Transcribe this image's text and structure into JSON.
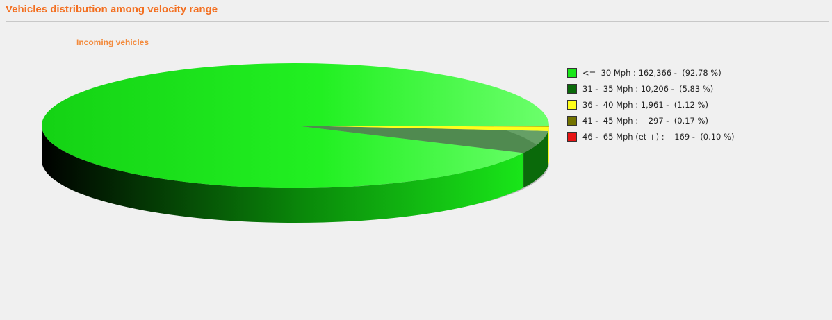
{
  "header": {
    "title": "Vehicles distribution among velocity range"
  },
  "chart_data": {
    "type": "pie",
    "title": "Incoming vehicles",
    "unit": "vehicles",
    "legend_position": "right",
    "slices": [
      {
        "label": "<=  30 Mph",
        "legend_text": "<=  30 Mph : 162,366 -  (92.78 %)",
        "value": 162366,
        "percent": 92.78,
        "color": "#19e619"
      },
      {
        "label": "31 -  35 Mph",
        "legend_text": "31 -  35 Mph : 10,206 -  (5.83 %)",
        "value": 10206,
        "percent": 5.83,
        "color": "#0a6a0a"
      },
      {
        "label": "36 -  40 Mph",
        "legend_text": "36 -  40 Mph : 1,961 -  (1.12 %)",
        "value": 1961,
        "percent": 1.12,
        "color": "#ffff1a"
      },
      {
        "label": "41 -  45 Mph",
        "legend_text": "41 -  45 Mph :    297 -  (0.17 %)",
        "value": 297,
        "percent": 0.17,
        "color": "#737300"
      },
      {
        "label": "46 -  65 Mph (et +)",
        "legend_text": "46 -  65 Mph (et +) :    169 -  (0.10 %)",
        "value": 169,
        "percent": 0.1,
        "color": "#e61414"
      }
    ]
  }
}
